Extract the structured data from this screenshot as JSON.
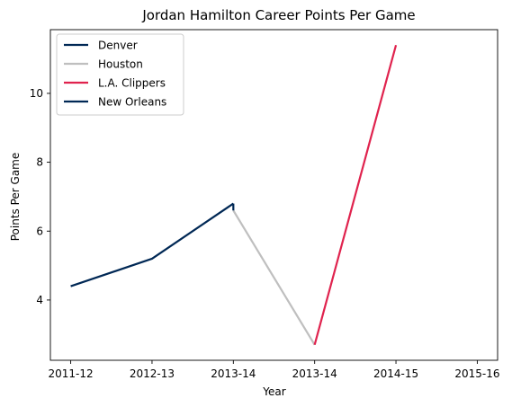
{
  "chart_data": {
    "type": "line",
    "title": "Jordan Hamilton Career Points Per Game",
    "xlabel": "Year",
    "ylabel": "Points Per Game",
    "x_ticks": [
      {
        "x": 0,
        "label": "2011-12"
      },
      {
        "x": 1,
        "label": "2012-13"
      },
      {
        "x": 2,
        "label": "2013-14"
      },
      {
        "x": 3,
        "label": "2013-14"
      },
      {
        "x": 4,
        "label": "2014-15"
      },
      {
        "x": 5,
        "label": "2015-16"
      }
    ],
    "y_ticks": [
      4,
      6,
      8,
      10
    ],
    "xlim": [
      -0.25,
      5.25
    ],
    "ylim": [
      2.25,
      11.85
    ],
    "grid": false,
    "legend_position": "top-left",
    "series": [
      {
        "name": "Denver",
        "color": "#002855",
        "points": [
          [
            0,
            4.4
          ],
          [
            1,
            5.2
          ],
          [
            2,
            6.8
          ]
        ]
      },
      {
        "name": "Houston",
        "color": "#BFBFBF",
        "points": [
          [
            2,
            6.6
          ],
          [
            3,
            2.7
          ]
        ]
      },
      {
        "name": "L.A. Clippers",
        "color": "#E0234E",
        "points": [
          [
            3,
            2.7
          ],
          [
            4,
            11.4
          ]
        ]
      },
      {
        "name": "New Orleans",
        "color": "#002855",
        "points": [
          [
            2,
            6.6
          ],
          [
            2,
            6.8
          ]
        ]
      }
    ]
  }
}
